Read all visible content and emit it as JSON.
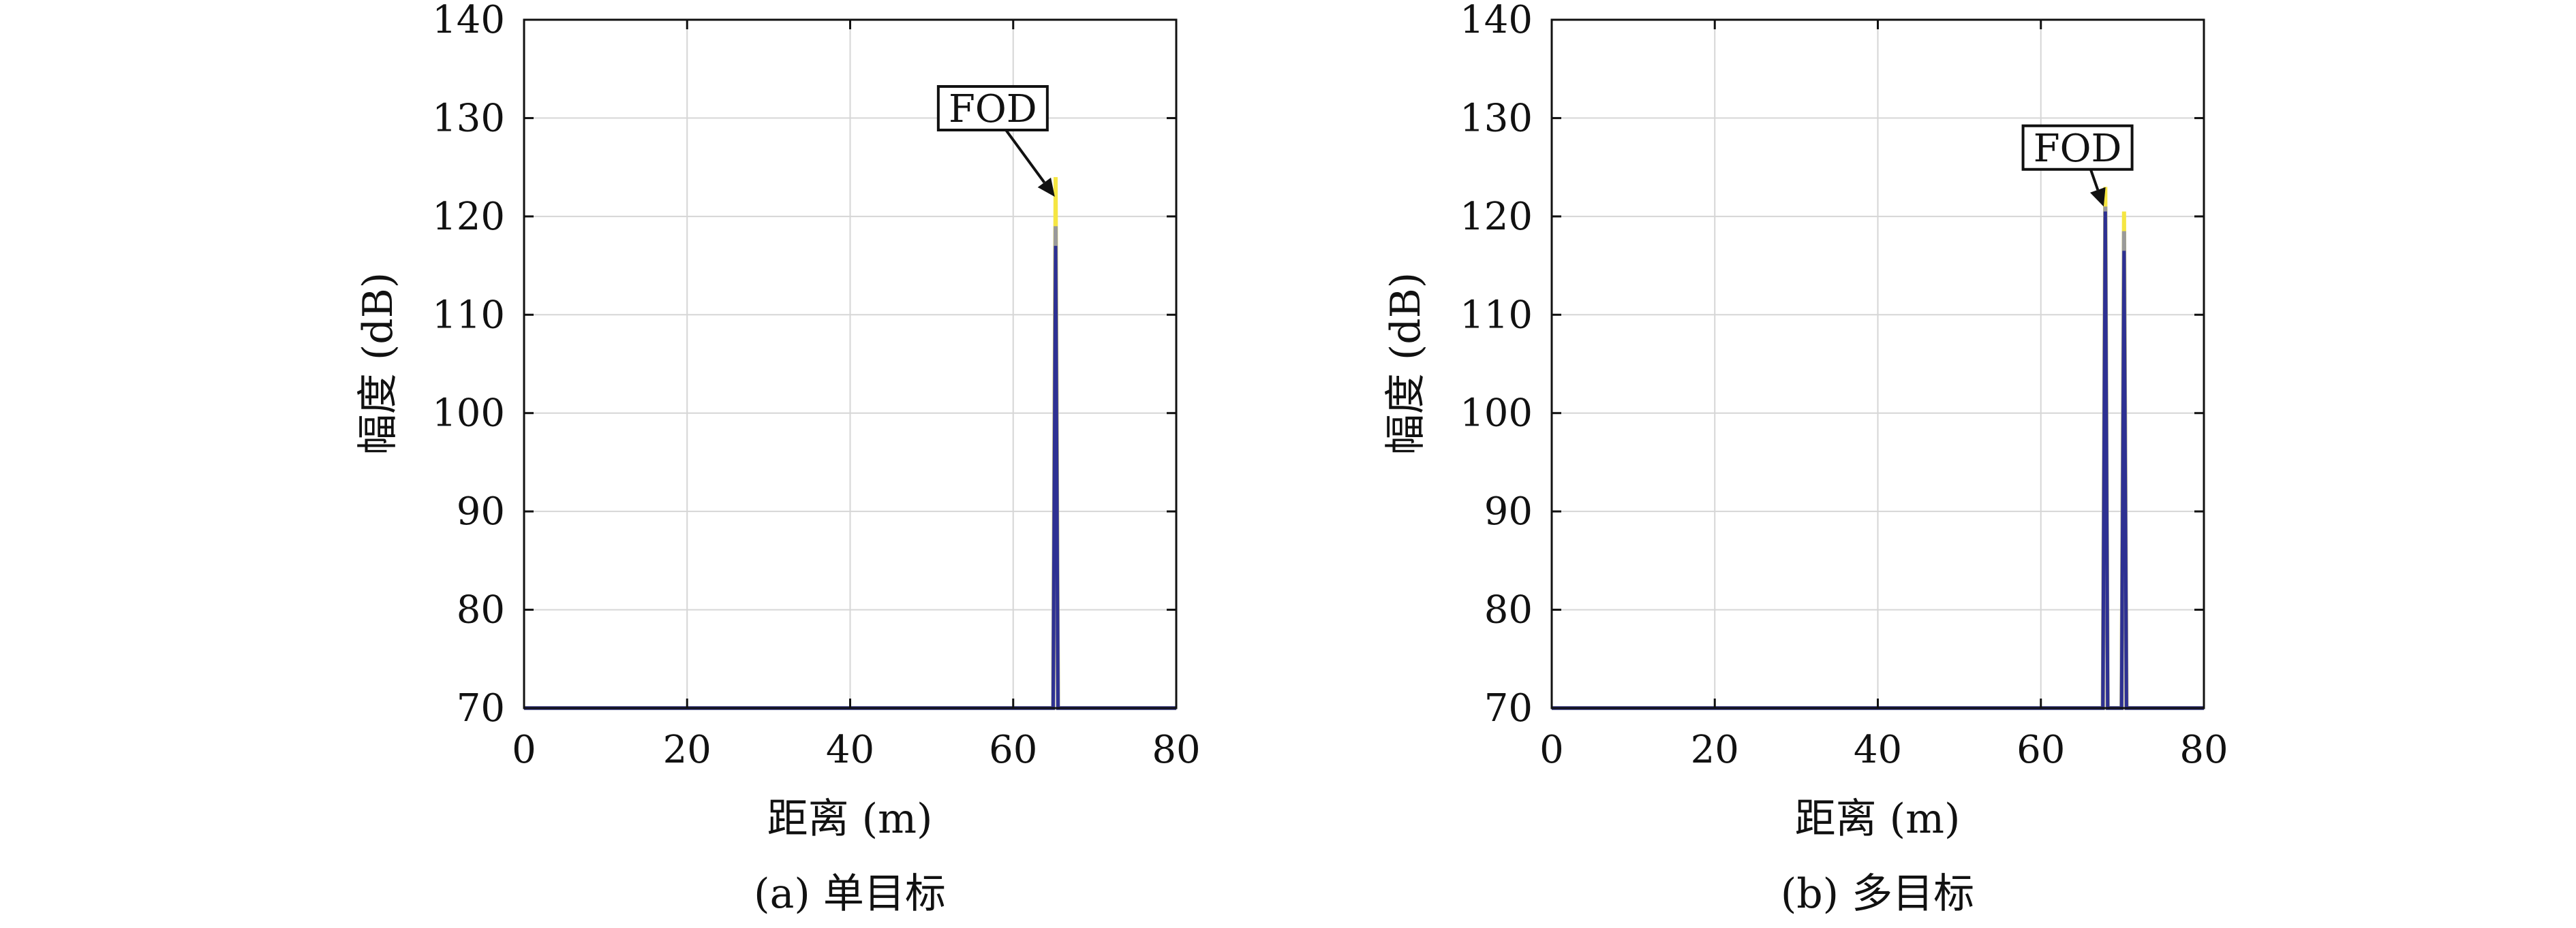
{
  "colors": {
    "primary_series": "#2e3192",
    "secondary_series": "#f5e642",
    "gray_series": "#9a9a9a",
    "grid": "#d6d6d6",
    "axis": "#111111"
  },
  "chart_data": [
    {
      "type": "line",
      "caption": "(a) 单目标",
      "xlabel": "距离 (m)",
      "ylabel": "幅度 (dB)",
      "xlim": [
        0,
        80
      ],
      "ylim": [
        70,
        140
      ],
      "xticks": [
        0,
        20,
        40,
        60,
        80
      ],
      "yticks": [
        70,
        80,
        90,
        100,
        110,
        120,
        130,
        140
      ],
      "grid": true,
      "series": [
        {
          "color_key": "secondary_series",
          "x": [
            0,
            64.9,
            65.2,
            65.5,
            80
          ],
          "y": [
            70,
            70,
            124,
            70,
            70
          ]
        },
        {
          "color_key": "gray_series",
          "x": [
            0,
            64.9,
            65.2,
            65.5,
            80
          ],
          "y": [
            70,
            70,
            119,
            70,
            70
          ]
        },
        {
          "color_key": "primary_series",
          "x": [
            0,
            64.9,
            65.2,
            65.5,
            80
          ],
          "y": [
            70,
            70,
            117,
            70,
            70
          ]
        }
      ],
      "annotations": [
        {
          "text": "FOD",
          "target": [
            65.1,
            122
          ],
          "label_at": [
            57.5,
            131
          ]
        }
      ]
    },
    {
      "type": "line",
      "caption": "(b) 多目标",
      "xlabel": "距离 (m)",
      "ylabel": "幅度 (dB)",
      "xlim": [
        0,
        80
      ],
      "ylim": [
        70,
        140
      ],
      "xticks": [
        0,
        20,
        40,
        60,
        80
      ],
      "yticks": [
        70,
        80,
        90,
        100,
        110,
        120,
        130,
        140
      ],
      "grid": true,
      "series": [
        {
          "color_key": "secondary_series",
          "x": [
            0,
            67.6,
            67.9,
            68.2,
            69.9,
            70.2,
            70.5,
            80
          ],
          "y": [
            70,
            70,
            123,
            70,
            70,
            120.5,
            70,
            70
          ]
        },
        {
          "color_key": "gray_series",
          "x": [
            0,
            67.6,
            67.9,
            68.2,
            69.9,
            70.2,
            70.5,
            80
          ],
          "y": [
            70,
            70,
            121,
            70,
            70,
            118.5,
            70,
            70
          ]
        },
        {
          "color_key": "primary_series",
          "x": [
            0,
            67.6,
            67.9,
            68.2,
            69.9,
            70.2,
            70.5,
            80
          ],
          "y": [
            70,
            70,
            120.5,
            70,
            70,
            116.5,
            70,
            70
          ]
        }
      ],
      "annotations": [
        {
          "text": "FOD",
          "target": [
            67.7,
            121
          ],
          "label_at": [
            64.5,
            127
          ]
        }
      ]
    }
  ]
}
